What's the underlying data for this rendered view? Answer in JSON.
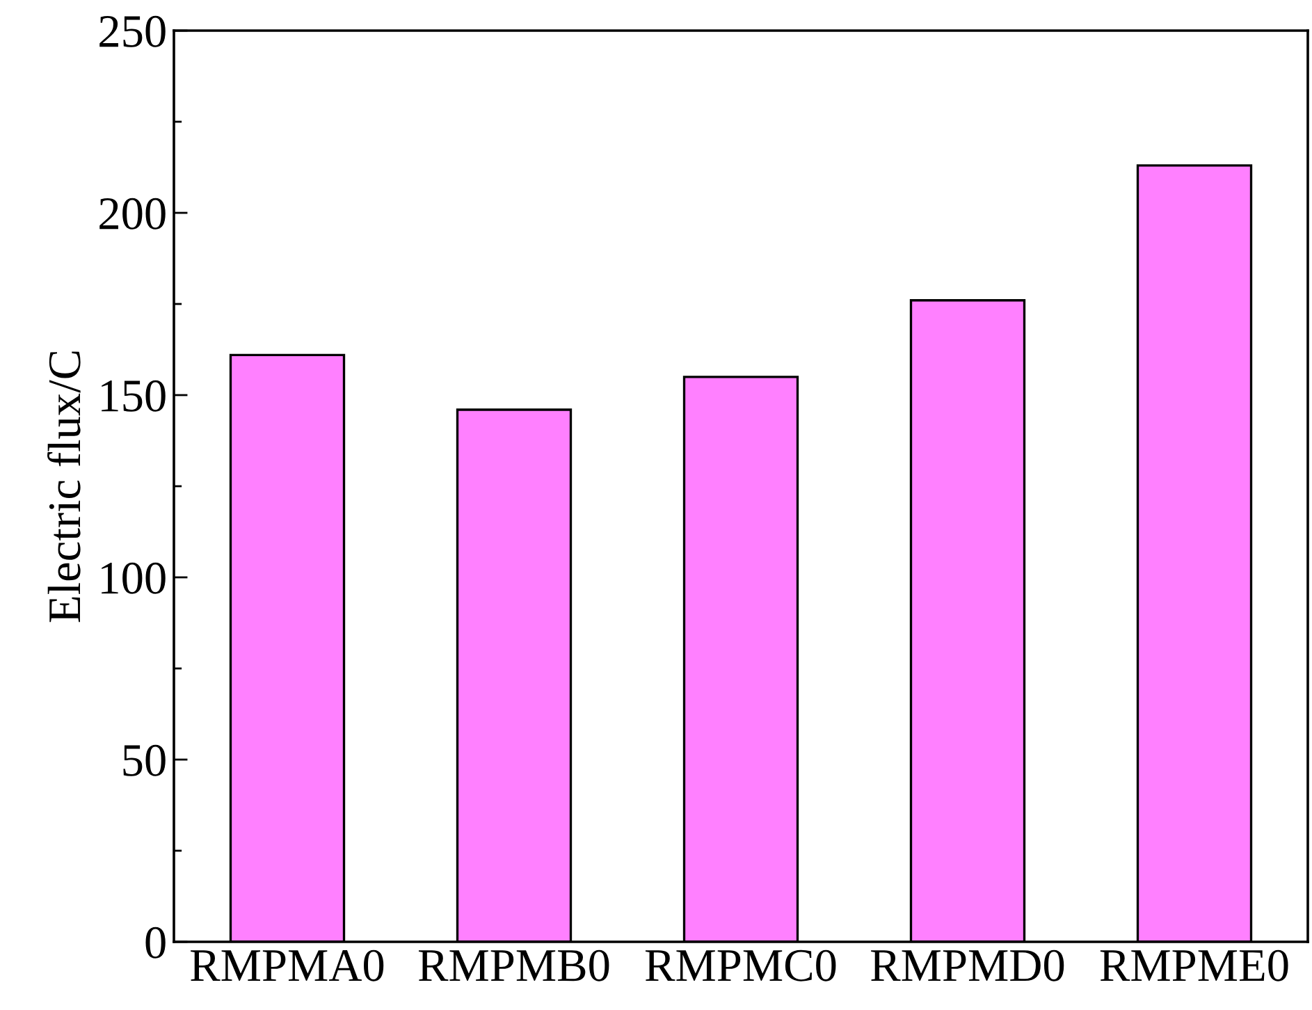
{
  "chart_data": {
    "type": "bar",
    "ylabel": "Electric flux/C",
    "categories": [
      "RMPMA0",
      "RMPMB0",
      "RMPMC0",
      "RMPMD0",
      "RMPME0"
    ],
    "values": [
      161,
      146,
      155,
      176,
      213
    ],
    "color": "#ff80ff",
    "ylim": [
      0,
      250
    ],
    "yticks": [
      0,
      50,
      100,
      150,
      200,
      250
    ],
    "grid": false,
    "legend": false
  }
}
